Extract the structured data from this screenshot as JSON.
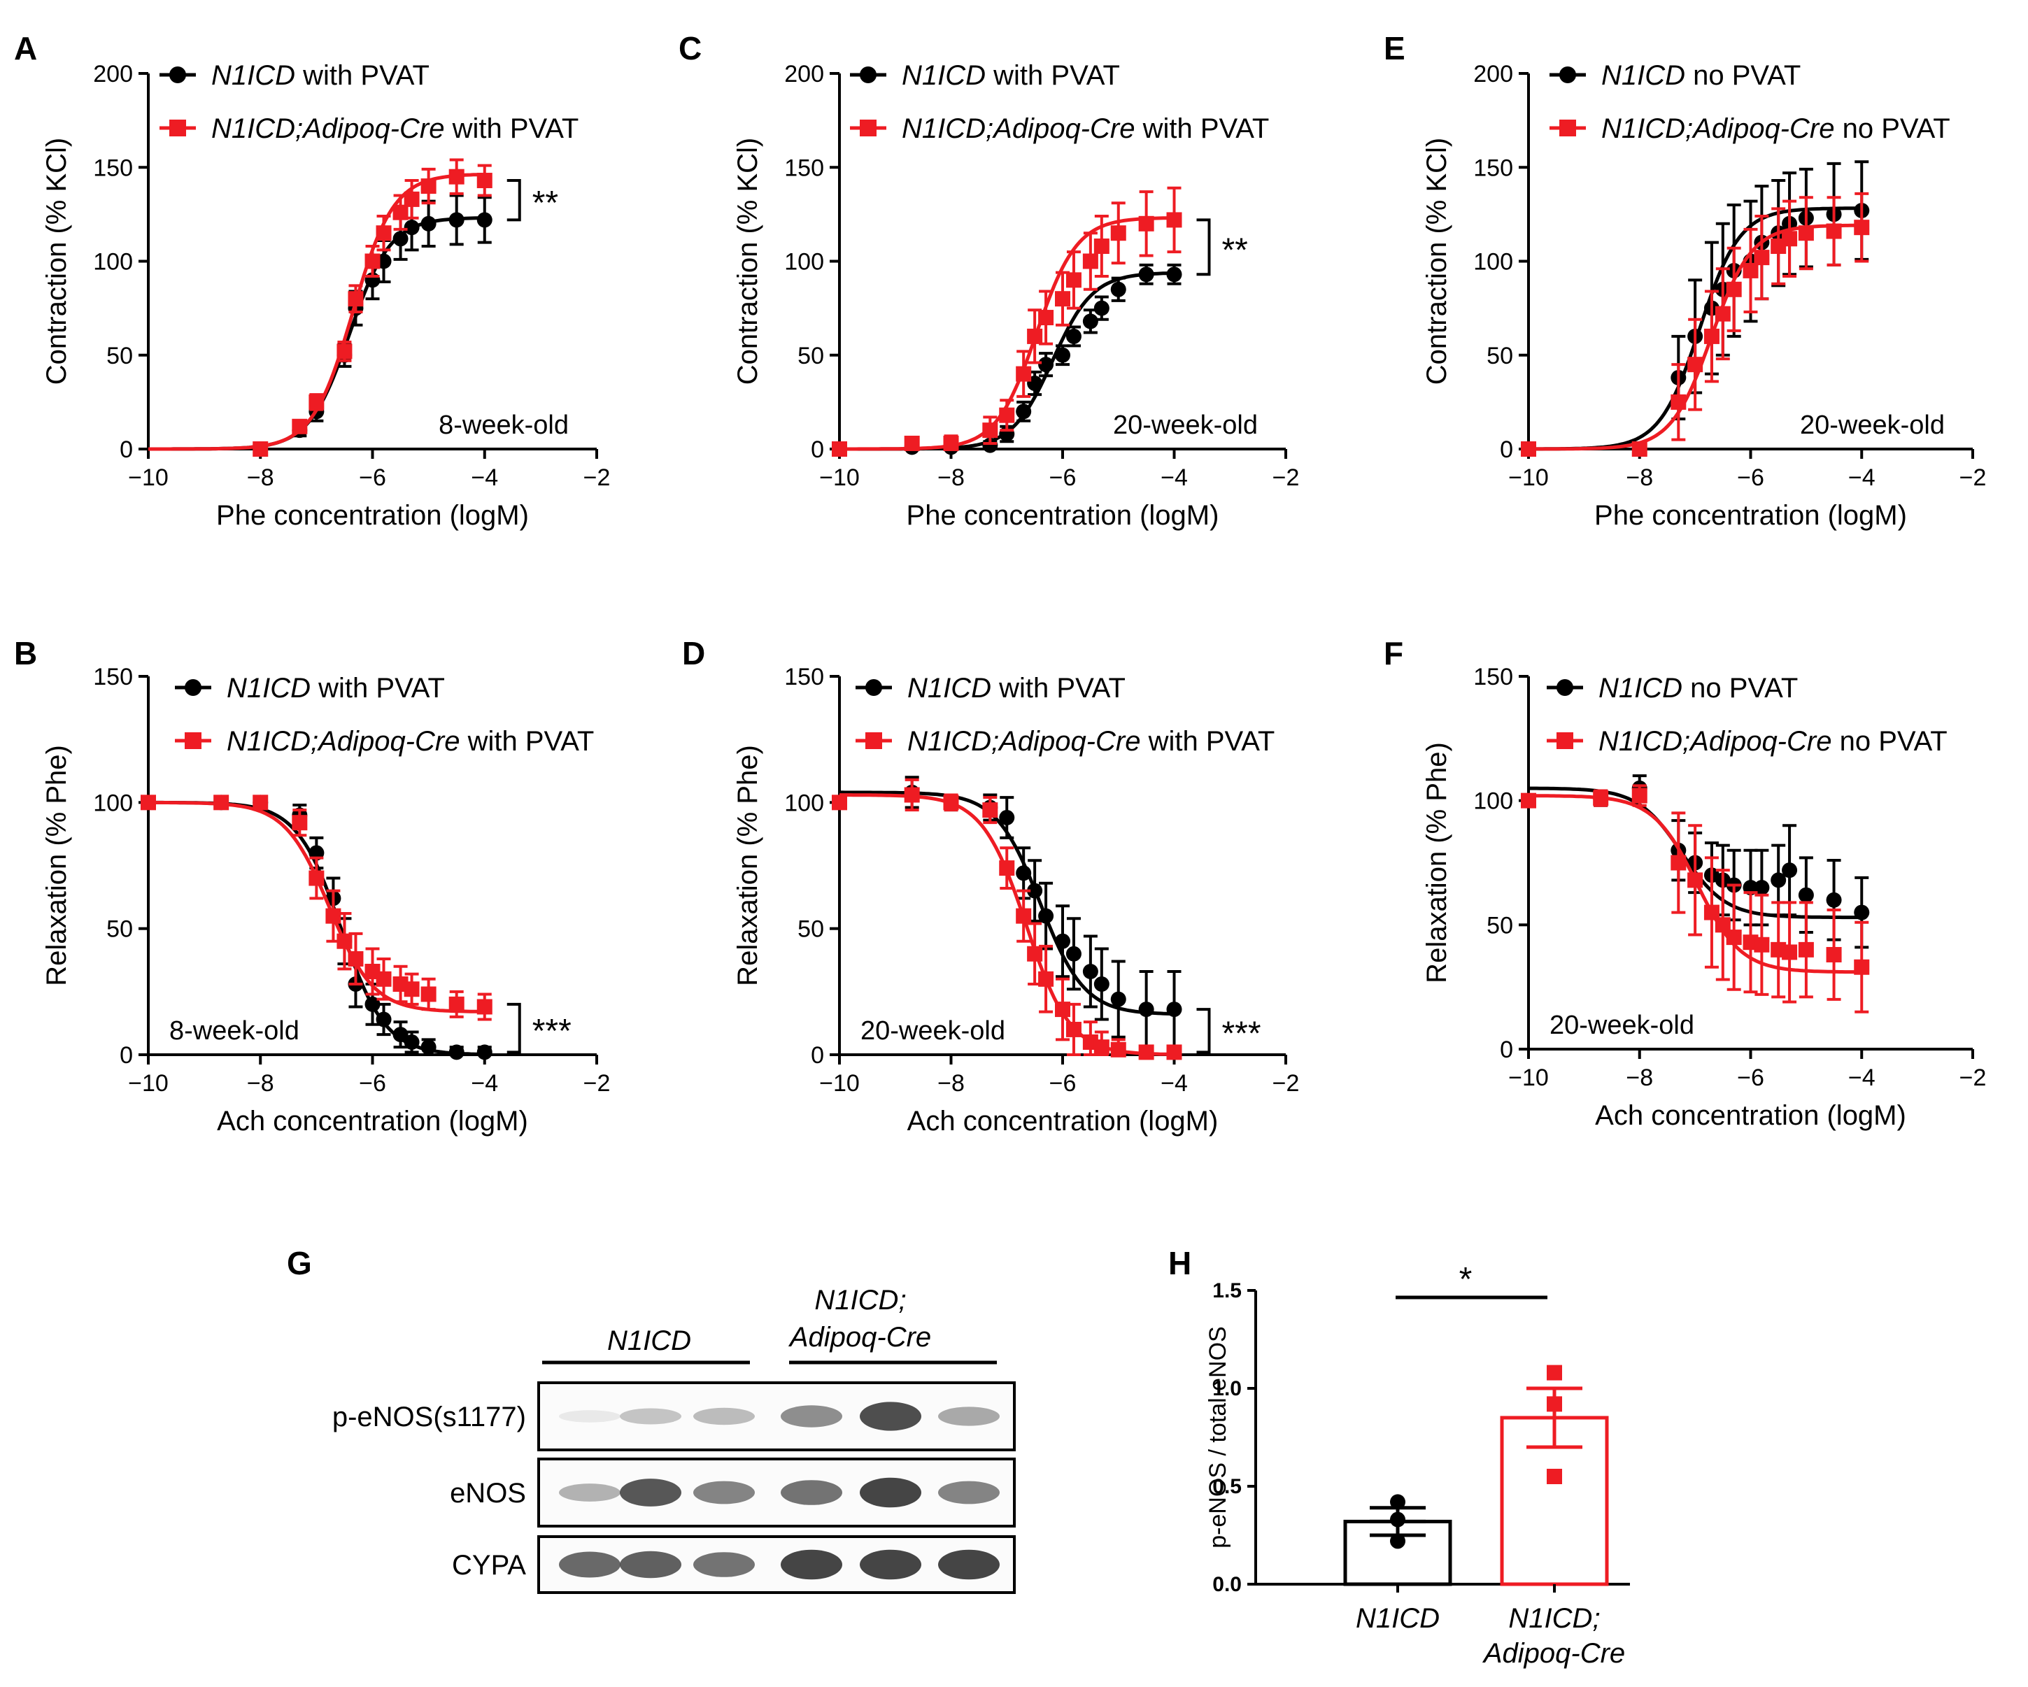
{
  "colors": {
    "ctrl": "#000000",
    "ko": "#ee1c23"
  },
  "chart_data": [
    {
      "id": "A",
      "type": "line",
      "panel_label": "A",
      "xlabel": "Phe concentration (logM)",
      "ylabel": "Contraction (% KCl)",
      "xlim": [
        -10,
        -2
      ],
      "ylim": [
        0,
        200
      ],
      "xticks": [
        -10,
        -8,
        -6,
        -4,
        -2
      ],
      "xtick_labels": [
        "−10",
        "−8",
        "−6",
        "−4",
        "−2"
      ],
      "yticks": [
        0,
        50,
        100,
        150,
        200
      ],
      "ytick_labels": [
        "0",
        "50",
        "100",
        "150",
        "200"
      ],
      "annotation": "8-week-old",
      "significance": "**",
      "sig_at": [
        122,
        143
      ],
      "curve": "contraction",
      "legend_pos": "top-left",
      "series": [
        {
          "name_italic": "N1ICD",
          "name_rest": " with PVAT",
          "color": "ctrl",
          "marker": "circle",
          "x": [
            -8,
            -7.3,
            -7,
            -6.5,
            -6.3,
            -6,
            -5.8,
            -5.5,
            -5.3,
            -5,
            -4.5,
            -4
          ],
          "y": [
            0,
            10,
            20,
            50,
            75,
            90,
            100,
            112,
            118,
            120,
            122,
            122
          ],
          "err": [
            1,
            3,
            5,
            6,
            9,
            10,
            11,
            11,
            12,
            12,
            13,
            12
          ]
        },
        {
          "name_italic": "N1ICD;Adipoq-Cre",
          "name_rest": " with PVAT",
          "color": "ko",
          "marker": "square",
          "x": [
            -8,
            -7.3,
            -7,
            -6.5,
            -6.3,
            -6,
            -5.8,
            -5.5,
            -5.3,
            -5,
            -4.5,
            -4
          ],
          "y": [
            0,
            12,
            25,
            52,
            80,
            100,
            115,
            126,
            133,
            140,
            145,
            143
          ],
          "err": [
            1,
            3,
            4,
            5,
            7,
            8,
            9,
            9,
            10,
            9,
            9,
            8
          ]
        }
      ]
    },
    {
      "id": "C",
      "type": "line",
      "panel_label": "C",
      "xlabel": "Phe concentration (logM)",
      "ylabel": "Contraction (% KCl)",
      "xlim": [
        -10,
        -2
      ],
      "ylim": [
        0,
        200
      ],
      "xticks": [
        -10,
        -8,
        -6,
        -4,
        -2
      ],
      "xtick_labels": [
        "−10",
        "−8",
        "−6",
        "−4",
        "−2"
      ],
      "yticks": [
        0,
        50,
        100,
        150,
        200
      ],
      "ytick_labels": [
        "0",
        "50",
        "100",
        "150",
        "200"
      ],
      "annotation": "20-week-old",
      "significance": "**",
      "sig_at": [
        93,
        122
      ],
      "curve": "contraction",
      "legend_pos": "top-left",
      "series": [
        {
          "name_italic": "N1ICD",
          "name_rest": " with PVAT",
          "color": "ctrl",
          "marker": "circle",
          "x": [
            -10,
            -8.7,
            -8,
            -7.3,
            -7,
            -6.7,
            -6.5,
            -6.3,
            -6,
            -5.8,
            -5.5,
            -5.3,
            -5,
            -4.5,
            -4
          ],
          "y": [
            0,
            1,
            1,
            2,
            8,
            20,
            35,
            45,
            50,
            60,
            68,
            75,
            85,
            93,
            93
          ],
          "err": [
            1,
            1,
            1,
            2,
            4,
            5,
            6,
            6,
            5,
            5,
            6,
            6,
            6,
            5,
            5
          ]
        },
        {
          "name_italic": "N1ICD;Adipoq-Cre",
          "name_rest": " with PVAT",
          "color": "ko",
          "marker": "square",
          "x": [
            -10,
            -8.7,
            -8,
            -7.3,
            -7,
            -6.7,
            -6.5,
            -6.3,
            -6,
            -5.8,
            -5.5,
            -5.3,
            -5,
            -4.5,
            -4
          ],
          "y": [
            0,
            3,
            3,
            10,
            18,
            40,
            60,
            70,
            80,
            90,
            100,
            108,
            115,
            120,
            122
          ],
          "err": [
            1,
            3,
            4,
            7,
            8,
            12,
            14,
            14,
            14,
            15,
            15,
            16,
            16,
            17,
            17
          ]
        }
      ]
    },
    {
      "id": "E",
      "type": "line",
      "panel_label": "E",
      "xlabel": "Phe concentration (logM)",
      "ylabel": "Contraction (% KCl)",
      "xlim": [
        -10,
        -2
      ],
      "ylim": [
        0,
        200
      ],
      "xticks": [
        -10,
        -8,
        -6,
        -4,
        -2
      ],
      "xtick_labels": [
        "−10",
        "−8",
        "−6",
        "−4",
        "−2"
      ],
      "yticks": [
        0,
        50,
        100,
        150,
        200
      ],
      "ytick_labels": [
        "0",
        "50",
        "100",
        "150",
        "200"
      ],
      "annotation": "20-week-old",
      "significance": "",
      "sig_at": [],
      "curve": "contraction",
      "legend_pos": "top-left",
      "series": [
        {
          "name_italic": "N1ICD",
          "name_rest": " no PVAT",
          "color": "ctrl",
          "marker": "circle",
          "x": [
            -10,
            -8,
            -7.3,
            -7,
            -6.7,
            -6.5,
            -6.3,
            -6,
            -5.8,
            -5.5,
            -5.3,
            -5,
            -4.5,
            -4
          ],
          "y": [
            0,
            0,
            38,
            60,
            75,
            85,
            95,
            100,
            110,
            115,
            120,
            123,
            125,
            127
          ],
          "err": [
            1,
            1,
            22,
            30,
            35,
            35,
            35,
            32,
            30,
            28,
            27,
            26,
            27,
            26
          ]
        },
        {
          "name_italic": "N1ICD;Adipoq-Cre",
          "name_rest": " no PVAT",
          "color": "ko",
          "marker": "square",
          "x": [
            -10,
            -8,
            -7.3,
            -7,
            -6.7,
            -6.5,
            -6.3,
            -6,
            -5.8,
            -5.5,
            -5.3,
            -5,
            -4.5,
            -4
          ],
          "y": [
            0,
            0,
            25,
            45,
            60,
            72,
            85,
            95,
            102,
            108,
            112,
            115,
            116,
            118
          ],
          "err": [
            1,
            1,
            20,
            24,
            24,
            24,
            22,
            22,
            22,
            20,
            20,
            19,
            18,
            18
          ]
        }
      ]
    },
    {
      "id": "B",
      "type": "line",
      "panel_label": "B",
      "xlabel": "Ach concentration (logM)",
      "ylabel": "Relaxation (% Phe)",
      "xlim": [
        -10,
        -2
      ],
      "ylim": [
        0,
        150
      ],
      "xticks": [
        -10,
        -8,
        -6,
        -4,
        -2
      ],
      "xtick_labels": [
        "−10",
        "−8",
        "−6",
        "−4",
        "−2"
      ],
      "yticks": [
        0,
        50,
        100,
        150
      ],
      "ytick_labels": [
        "0",
        "50",
        "100",
        "150"
      ],
      "annotation": "8-week-old",
      "significance": "***",
      "sig_at": [
        1,
        20
      ],
      "curve": "relaxation",
      "legend_pos": "top-right",
      "series": [
        {
          "name_italic": "N1ICD",
          "name_rest": " with PVAT",
          "color": "ctrl",
          "marker": "circle",
          "x": [
            -10,
            -8.7,
            -8,
            -7.3,
            -7,
            -6.7,
            -6.5,
            -6.3,
            -6,
            -5.8,
            -5.5,
            -5.3,
            -5,
            -4.5,
            -4
          ],
          "y": [
            100,
            100,
            100,
            95,
            80,
            62,
            45,
            28,
            20,
            14,
            8,
            5,
            3,
            1,
            1
          ],
          "err": [
            1,
            1,
            2,
            4,
            6,
            8,
            9,
            9,
            8,
            6,
            5,
            4,
            3,
            2,
            2
          ]
        },
        {
          "name_italic": "N1ICD;Adipoq-Cre",
          "name_rest": " with PVAT",
          "color": "ko",
          "marker": "square",
          "x": [
            -10,
            -8.7,
            -8,
            -7.3,
            -7,
            -6.7,
            -6.5,
            -6.3,
            -6,
            -5.8,
            -5.5,
            -5.3,
            -5,
            -4.5,
            -4
          ],
          "y": [
            100,
            100,
            100,
            92,
            70,
            55,
            45,
            38,
            33,
            30,
            28,
            26,
            24,
            20,
            19
          ],
          "err": [
            1,
            2,
            2,
            5,
            8,
            10,
            11,
            10,
            9,
            8,
            7,
            6,
            6,
            5,
            5
          ]
        }
      ]
    },
    {
      "id": "D",
      "type": "line",
      "panel_label": "D",
      "xlabel": "Ach concentration (logM)",
      "ylabel": "Relaxation (% Phe)",
      "xlim": [
        -10,
        -2
      ],
      "ylim": [
        0,
        150
      ],
      "xticks": [
        -10,
        -8,
        -6,
        -4,
        -2
      ],
      "xtick_labels": [
        "−10",
        "−8",
        "−6",
        "−4",
        "−2"
      ],
      "yticks": [
        0,
        50,
        100,
        150
      ],
      "ytick_labels": [
        "0",
        "50",
        "100",
        "150"
      ],
      "annotation": "20-week-old",
      "significance": "***",
      "sig_at": [
        1,
        18
      ],
      "curve": "relaxation",
      "legend_pos": "top-right",
      "series": [
        {
          "name_italic": "N1ICD",
          "name_rest": " with PVAT",
          "color": "ctrl",
          "marker": "circle",
          "x": [
            -10,
            -8.7,
            -8,
            -7.3,
            -7,
            -6.7,
            -6.5,
            -6.3,
            -6,
            -5.8,
            -5.5,
            -5.3,
            -5,
            -4.5,
            -4
          ],
          "y": [
            100,
            104,
            100,
            98,
            94,
            72,
            65,
            55,
            45,
            40,
            33,
            28,
            22,
            18,
            18
          ],
          "err": [
            2,
            6,
            3,
            5,
            8,
            10,
            12,
            13,
            14,
            14,
            14,
            14,
            15,
            15,
            15
          ]
        },
        {
          "name_italic": "N1ICD;Adipoq-Cre",
          "name_rest": " with PVAT",
          "color": "ko",
          "marker": "square",
          "x": [
            -10,
            -8.7,
            -8,
            -7.3,
            -7,
            -6.7,
            -6.5,
            -6.3,
            -6,
            -5.8,
            -5.5,
            -5.3,
            -5,
            -4.5,
            -4
          ],
          "y": [
            100,
            103,
            100,
            97,
            74,
            55,
            40,
            30,
            18,
            10,
            5,
            3,
            2,
            1,
            1
          ],
          "err": [
            2,
            6,
            3,
            5,
            8,
            10,
            12,
            13,
            12,
            10,
            8,
            6,
            4,
            2,
            2
          ]
        }
      ]
    },
    {
      "id": "F",
      "type": "line",
      "panel_label": "F",
      "xlabel": "Ach concentration (logM)",
      "ylabel": "Relaxation (% Phe)",
      "xlim": [
        -10,
        -2
      ],
      "ylim": [
        0,
        150
      ],
      "xticks": [
        -10,
        -8,
        -6,
        -4,
        -2
      ],
      "xtick_labels": [
        "−10",
        "−8",
        "−6",
        "−4",
        "−2"
      ],
      "yticks": [
        0,
        50,
        100,
        150
      ],
      "ytick_labels": [
        "0",
        "50",
        "100",
        "150"
      ],
      "annotation": "20-week-old",
      "significance": "",
      "sig_at": [],
      "curve": "relaxation",
      "legend_pos": "top-right",
      "series": [
        {
          "name_italic": "N1ICD",
          "name_rest": " no PVAT",
          "color": "ctrl",
          "marker": "circle",
          "x": [
            -10,
            -8.7,
            -8,
            -7.3,
            -7,
            -6.7,
            -6.5,
            -6.3,
            -6,
            -5.8,
            -5.5,
            -5.3,
            -5,
            -4.5,
            -4
          ],
          "y": [
            100,
            101,
            105,
            80,
            75,
            70,
            68,
            66,
            65,
            65,
            68,
            72,
            62,
            60,
            55
          ],
          "err": [
            2,
            3,
            5,
            12,
            12,
            13,
            14,
            14,
            15,
            15,
            14,
            18,
            15,
            16,
            14
          ]
        },
        {
          "name_italic": "N1ICD;Adipoq-Cre",
          "name_rest": " no PVAT",
          "color": "ko",
          "marker": "square",
          "x": [
            -10,
            -8.7,
            -8,
            -7.3,
            -7,
            -6.7,
            -6.5,
            -6.3,
            -6,
            -5.8,
            -5.5,
            -5.3,
            -5,
            -4.5,
            -4
          ],
          "y": [
            100,
            101,
            102,
            75,
            68,
            55,
            50,
            45,
            43,
            42,
            40,
            39,
            40,
            38,
            33
          ],
          "err": [
            2,
            3,
            4,
            20,
            22,
            22,
            22,
            21,
            20,
            20,
            19,
            20,
            19,
            18,
            18
          ]
        }
      ]
    },
    {
      "id": "H",
      "type": "bar",
      "panel_label": "H",
      "ylabel": "p-eNOS / total eNOS",
      "ylim": [
        0,
        1.5
      ],
      "yticks": [
        0,
        0.5,
        1.0,
        1.5
      ],
      "ytick_labels": [
        "0.0",
        "0.5",
        "1.0",
        "1.5"
      ],
      "categories": [
        {
          "line1": "N1ICD",
          "line2": "",
          "color": "ctrl",
          "marker": "circle"
        },
        {
          "line1": "N1ICD;",
          "line2": "Adipoq-Cre",
          "color": "ko",
          "marker": "square"
        }
      ],
      "values": [
        0.32,
        0.85
      ],
      "sem": [
        0.07,
        0.15
      ],
      "points": [
        [
          0.42,
          0.33,
          0.22
        ],
        [
          1.08,
          0.92,
          0.55
        ]
      ],
      "significance": "*"
    }
  ],
  "blot": {
    "panel_label": "G",
    "group1": "N1ICD",
    "group2_line1": "N1ICD;",
    "group2_line2": "Adipoq-Cre",
    "rows": [
      {
        "label": "p-eNOS(s1177)",
        "intensity": [
          0.05,
          0.25,
          0.3,
          0.55,
          0.9,
          0.4
        ]
      },
      {
        "label": "eNOS",
        "intensity": [
          0.35,
          0.85,
          0.6,
          0.7,
          0.95,
          0.6
        ]
      },
      {
        "label": "CYPA",
        "intensity": [
          0.75,
          0.8,
          0.7,
          0.95,
          0.95,
          0.95
        ]
      }
    ]
  }
}
